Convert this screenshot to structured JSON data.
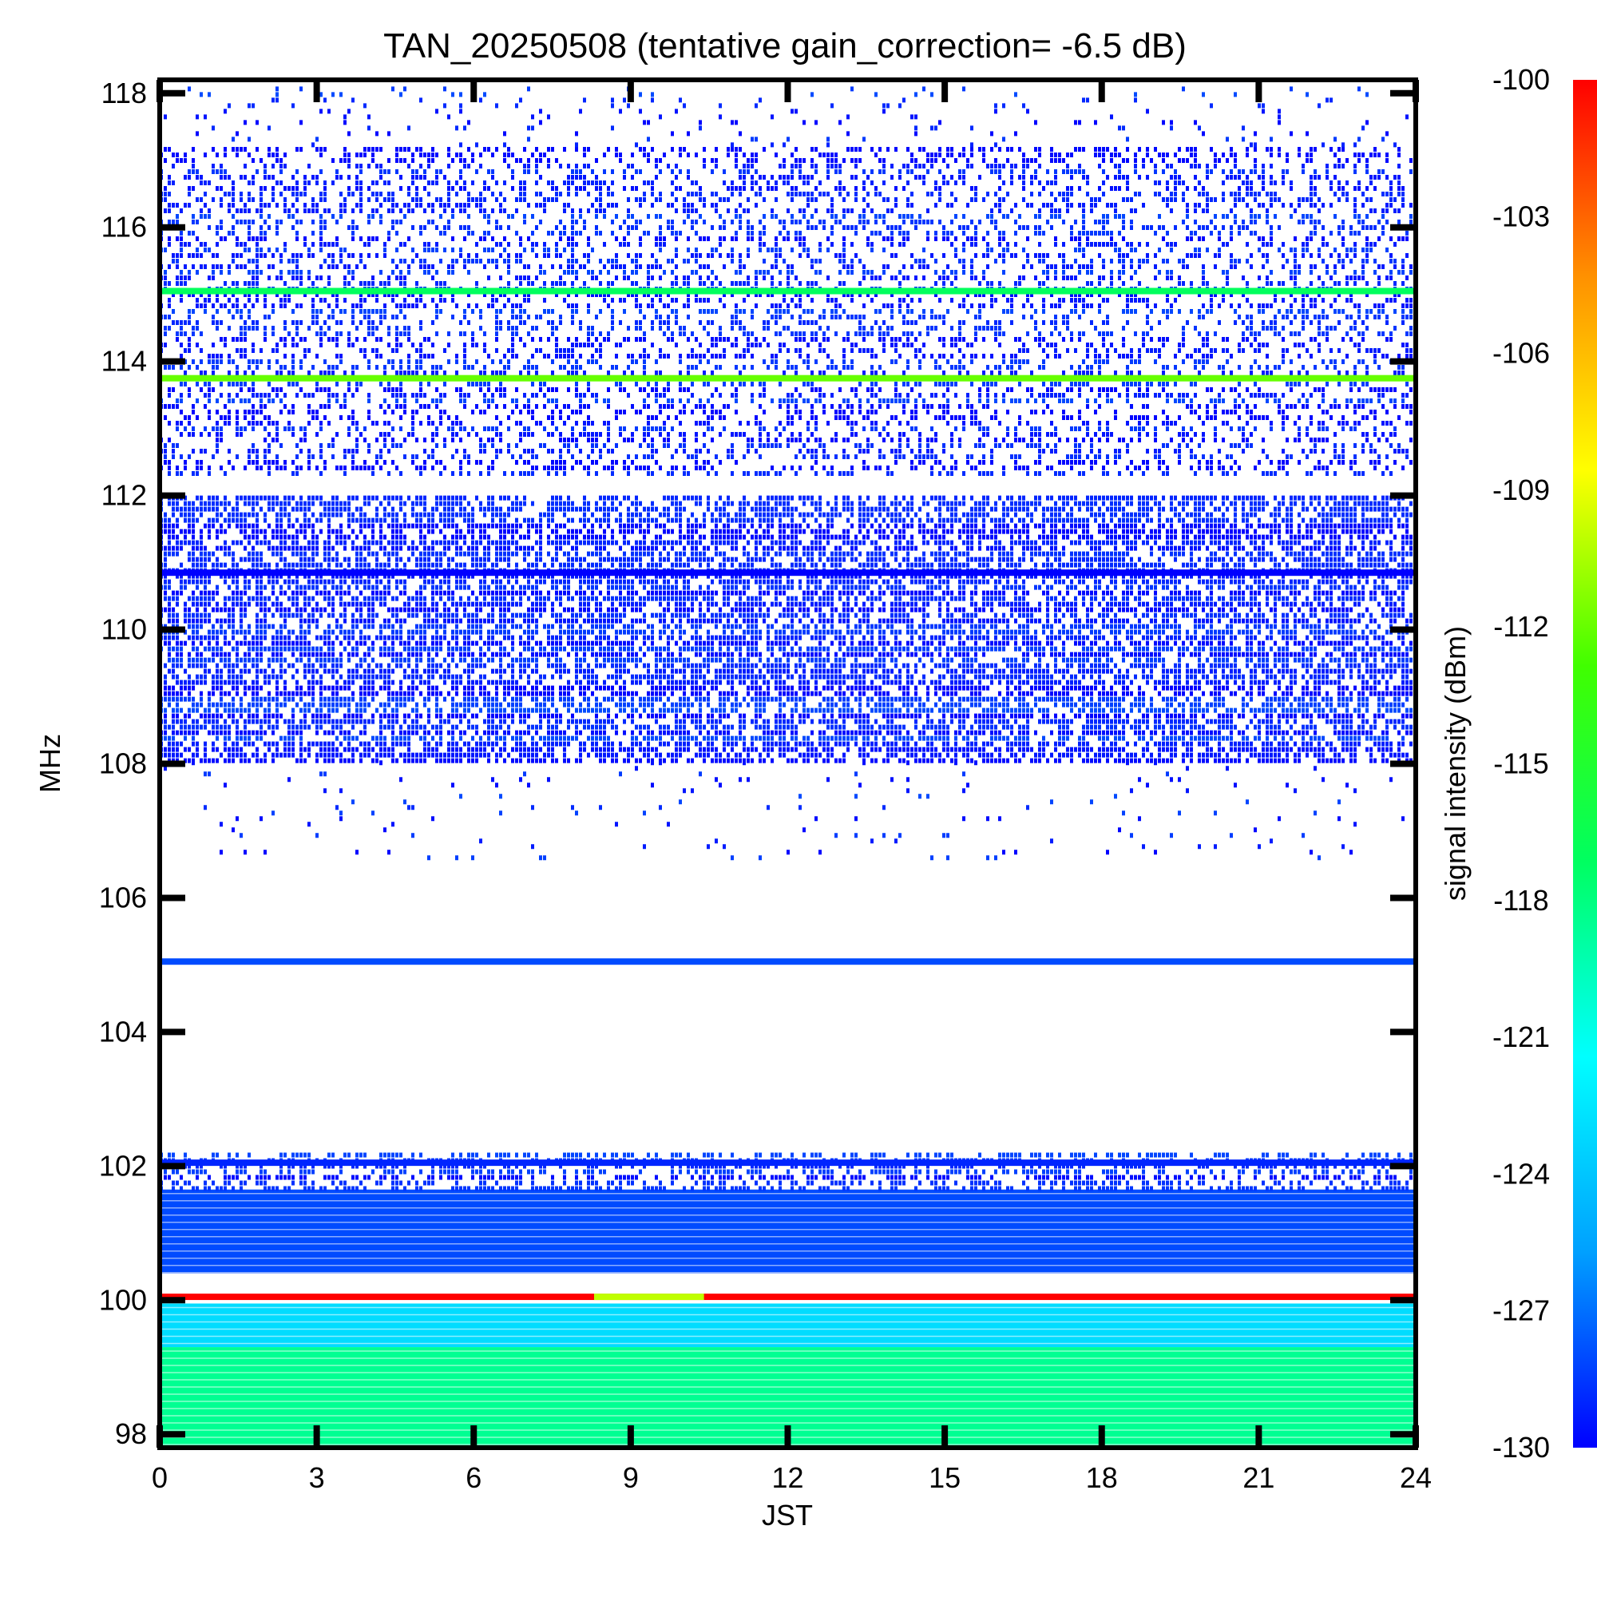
{
  "chart_data": {
    "type": "heatmap",
    "title": "TAN_20250508 (tentative gain_correction= -6.5 dB)",
    "xlabel": "JST",
    "ylabel": "MHz",
    "colorbar_label": "signal intensity (dBm)",
    "xlim": [
      0,
      24
    ],
    "ylim": [
      97.8,
      118.2
    ],
    "x_ticks": [
      0,
      3,
      6,
      9,
      12,
      15,
      18,
      21,
      24
    ],
    "x_tick_labels": [
      "0",
      "3",
      "6",
      "9",
      "12",
      "15",
      "18",
      "21",
      "24"
    ],
    "y_ticks": [
      98,
      100,
      102,
      104,
      106,
      108,
      110,
      112,
      114,
      116,
      118
    ],
    "y_tick_labels": [
      "98",
      "100",
      "102",
      "104",
      "106",
      "108",
      "110",
      "112",
      "114",
      "116",
      "118"
    ],
    "colorbar_range": [
      -130,
      -100
    ],
    "colorbar_ticks": [
      -130,
      -127,
      -124,
      -121,
      -118,
      -115,
      -112,
      -109,
      -106,
      -103,
      -100
    ],
    "colorbar_tick_labels": [
      "-130",
      "-127",
      "-124",
      "-121",
      "-118",
      "-115",
      "-112",
      "-109",
      "-106",
      "-103",
      "-100"
    ],
    "colormap": [
      "#0000ff",
      "#00a0ff",
      "#00ffff",
      "#00ff60",
      "#40ff00",
      "#ffff00",
      "#ff9000",
      "#ff0000"
    ],
    "bands": [
      {
        "f_low": 97.8,
        "f_high": 99.3,
        "dbm": -118.5,
        "pattern": "solid"
      },
      {
        "f_low": 99.3,
        "f_high": 99.95,
        "dbm": -123,
        "pattern": "solid"
      },
      {
        "f_low": 100.4,
        "f_high": 101.65,
        "dbm": -128,
        "pattern": "solid"
      },
      {
        "f_low": 101.65,
        "f_high": 102.2,
        "dbm": -129,
        "pattern": "noise",
        "density": 0.5
      },
      {
        "f_low": 108.05,
        "f_high": 112.0,
        "dbm": -129,
        "pattern": "noise",
        "density": 0.65
      },
      {
        "f_low": 112.3,
        "f_high": 117.2,
        "dbm": -129,
        "pattern": "noise",
        "density": 0.35
      },
      {
        "f_low": 117.2,
        "f_high": 118.1,
        "dbm": -129,
        "pattern": "noise",
        "density": 0.06
      },
      {
        "f_low": 106.6,
        "f_high": 108.05,
        "dbm": -129,
        "pattern": "noise",
        "density": 0.03
      }
    ],
    "lines": [
      {
        "freq": 115.05,
        "dbm": -117
      },
      {
        "freq": 113.75,
        "dbm": -112
      },
      {
        "freq": 110.85,
        "dbm": -131
      },
      {
        "freq": 105.05,
        "dbm": -128
      },
      {
        "freq": 102.05,
        "dbm": -129
      },
      {
        "freq": 100.05,
        "dbm": -100,
        "segments": [
          {
            "x0": 8.3,
            "x1": 10.4,
            "dbm": -110
          }
        ]
      }
    ]
  }
}
